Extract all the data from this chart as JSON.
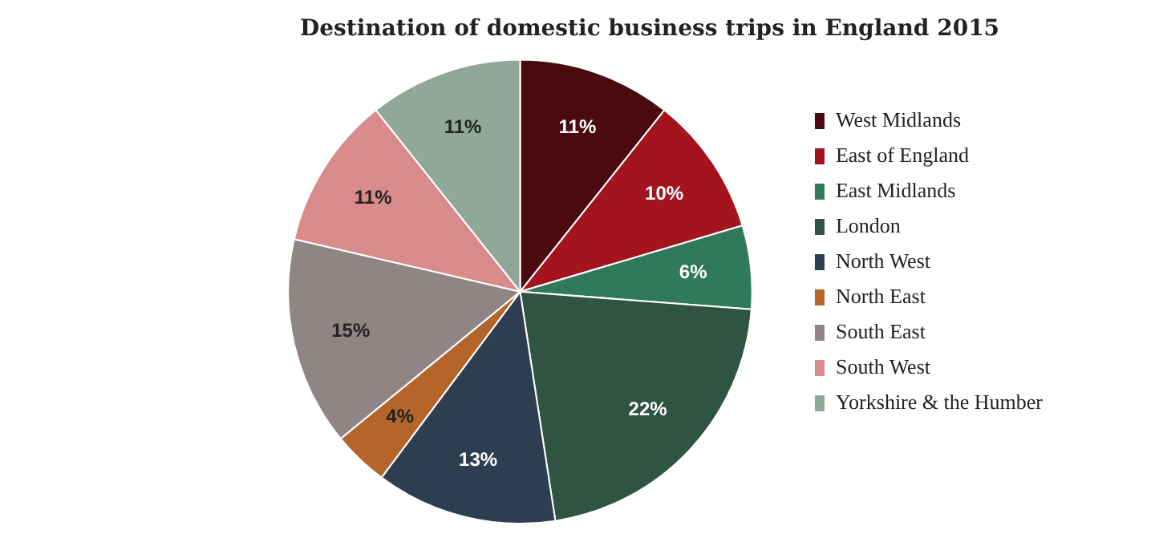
{
  "chart_data": {
    "type": "pie",
    "title": "Destination of domestic business trips in England 2015",
    "categories": [
      "West Midlands",
      "East of England",
      "East Midlands",
      "London",
      "North West",
      "North East",
      "South East",
      "South West",
      "Yorkshire & the Humber"
    ],
    "values": [
      11,
      10,
      6,
      22,
      13,
      4,
      15,
      11,
      11
    ],
    "value_labels": [
      "11%",
      "10%",
      "6%",
      "22%",
      "13%",
      "4%",
      "15%",
      "11%",
      "11%"
    ],
    "colors": [
      "#4a0a0e",
      "#a3141f",
      "#2e7a5a",
      "#2f5443",
      "#2c3e50",
      "#b5652a",
      "#8f8585",
      "#d98a8a",
      "#8fa89a"
    ],
    "legend": "right"
  }
}
